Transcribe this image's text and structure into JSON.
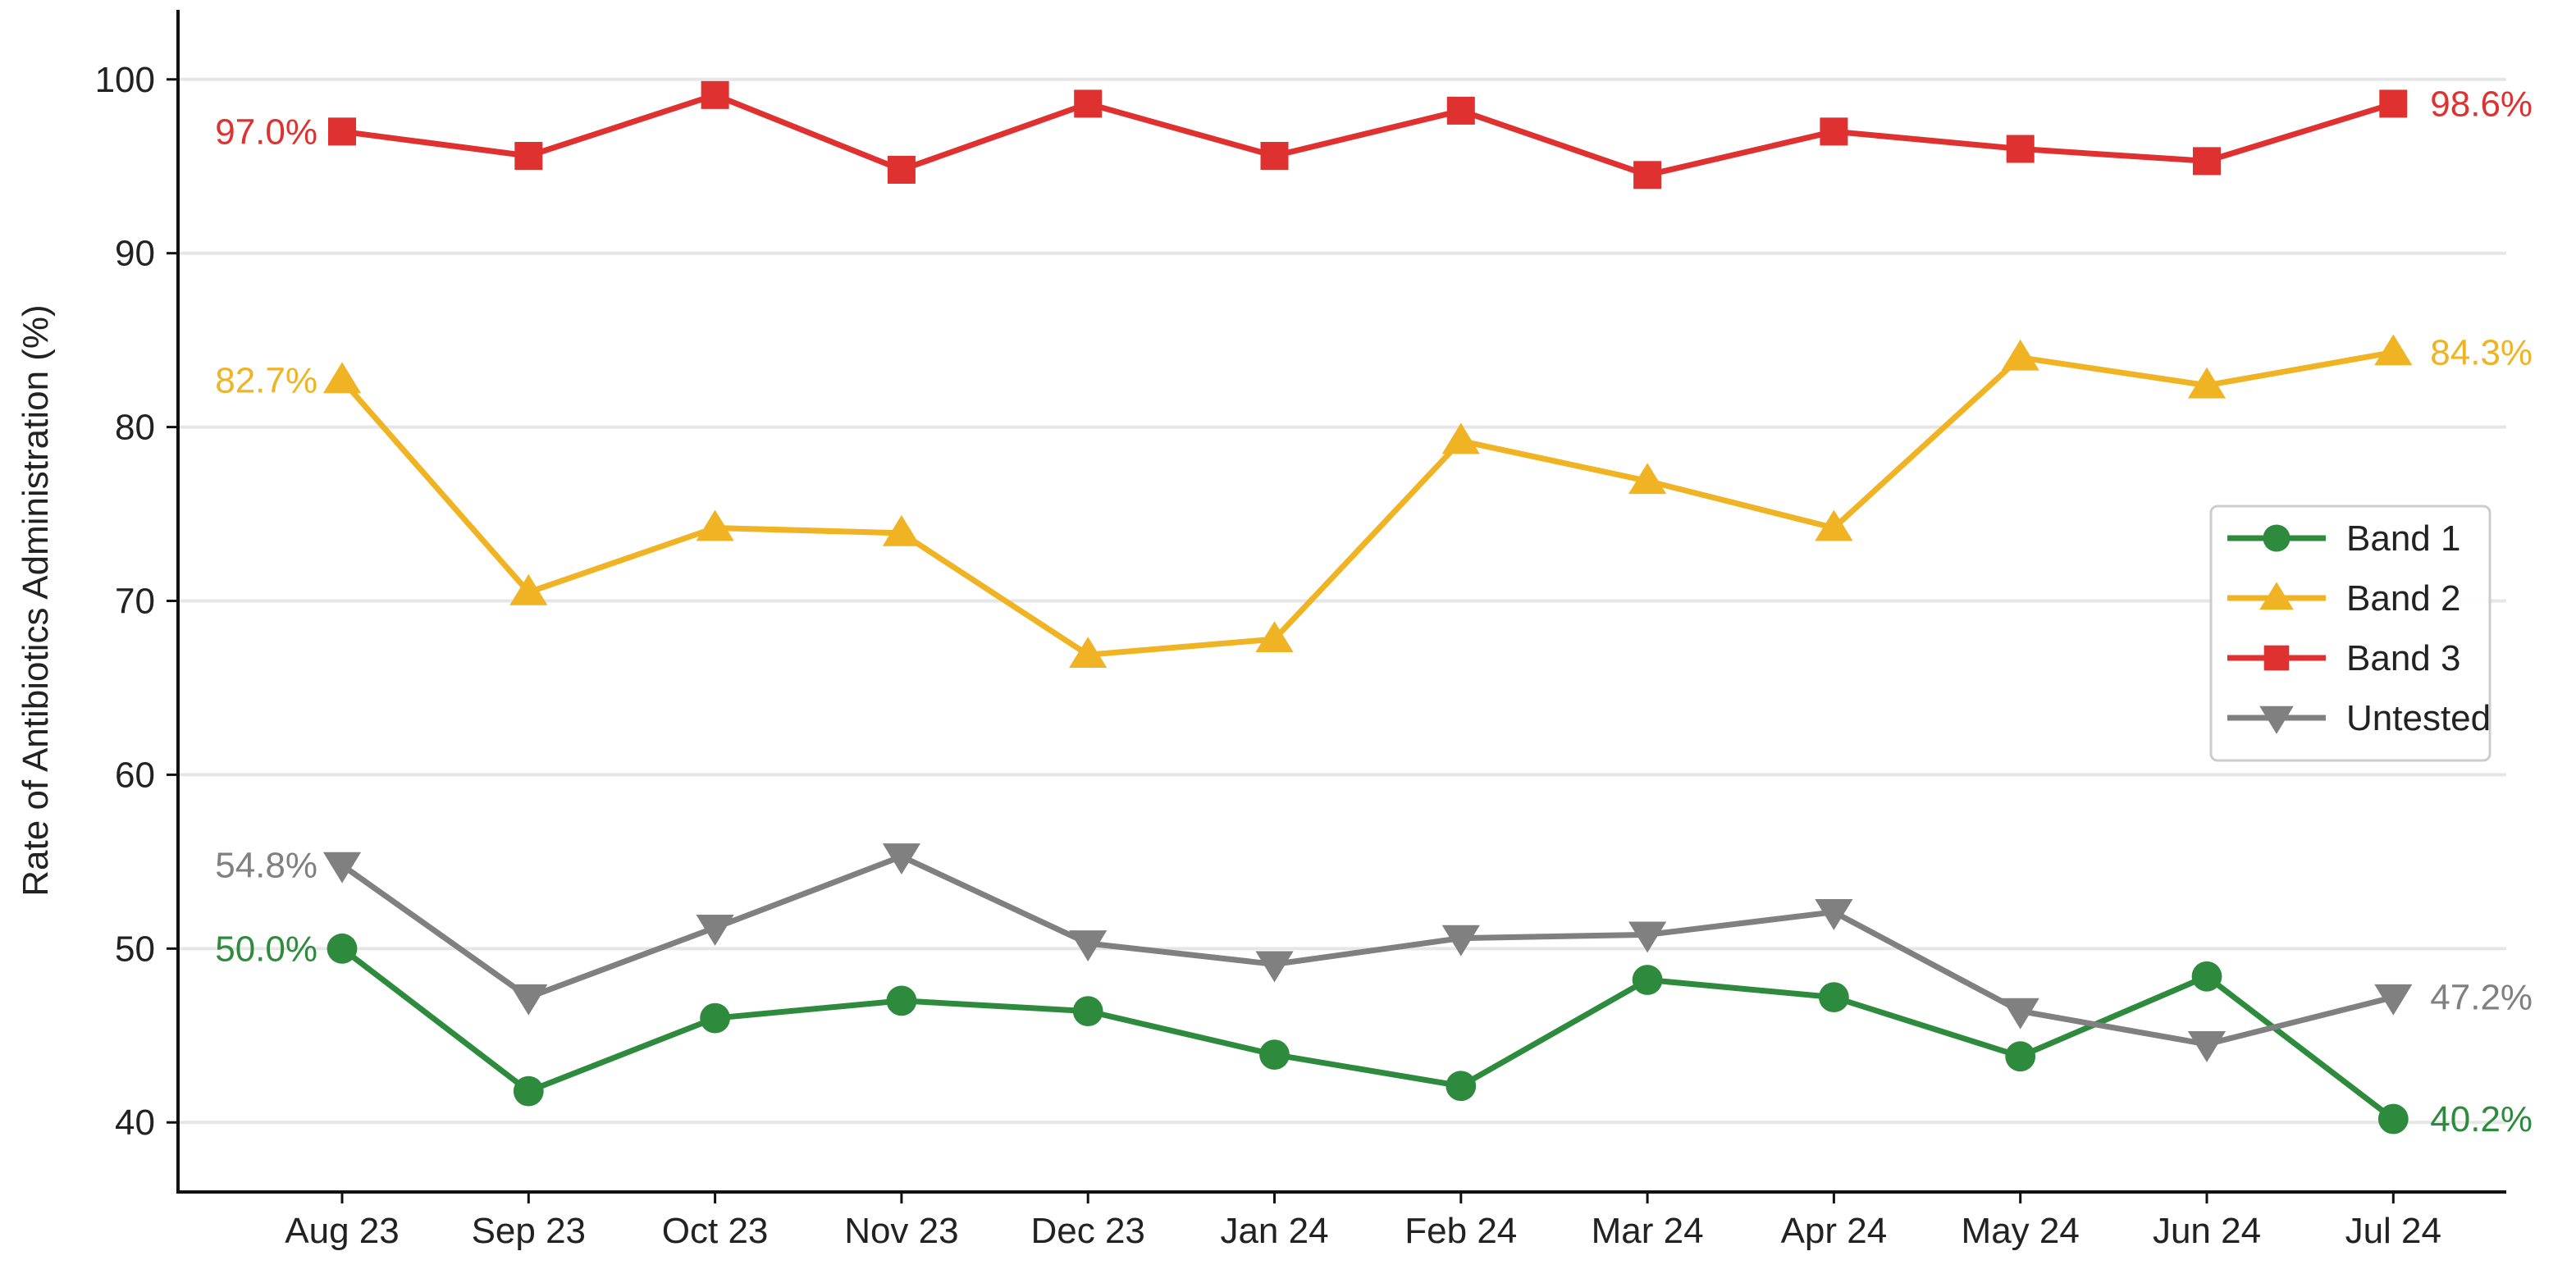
{
  "chart_data": {
    "type": "line",
    "title": "",
    "xlabel": "",
    "ylabel": "Rate of Antibiotics Administration (%)",
    "categories": [
      "Aug 23",
      "Sep 23",
      "Oct 23",
      "Nov 23",
      "Dec 23",
      "Jan 24",
      "Feb 24",
      "Mar 24",
      "Apr 24",
      "May 24",
      "Jun 24",
      "Jul 24"
    ],
    "ylim": [
      36,
      104
    ],
    "yticks": [
      40,
      50,
      60,
      70,
      80,
      90,
      100
    ],
    "grid": "horizontal",
    "legend_position": "right",
    "series": [
      {
        "name": "Band 1",
        "color": "#2e8b3e",
        "marker": "circle",
        "values": [
          50.0,
          41.8,
          46.0,
          47.0,
          46.4,
          43.9,
          42.1,
          48.2,
          47.2,
          43.8,
          48.4,
          40.2
        ],
        "start_label": "50.0%",
        "end_label": "40.2%"
      },
      {
        "name": "Band 2",
        "color": "#f0b323",
        "marker": "triangle-up",
        "values": [
          82.7,
          70.5,
          74.2,
          73.9,
          66.9,
          67.8,
          79.2,
          76.9,
          74.2,
          84.0,
          82.4,
          84.3
        ],
        "start_label": "82.7%",
        "end_label": "84.3%"
      },
      {
        "name": "Band 3",
        "color": "#e03131",
        "marker": "square",
        "values": [
          97.0,
          95.6,
          99.1,
          94.8,
          98.6,
          95.6,
          98.2,
          94.5,
          97.0,
          96.0,
          95.3,
          98.6
        ],
        "start_label": "97.0%",
        "end_label": "98.6%"
      },
      {
        "name": "Untested",
        "color": "#808080",
        "marker": "triangle-down",
        "values": [
          54.8,
          47.2,
          51.2,
          55.3,
          50.3,
          49.1,
          50.6,
          50.8,
          52.1,
          46.4,
          44.5,
          47.2
        ],
        "start_label": "54.8%",
        "end_label": "47.2%"
      }
    ]
  }
}
